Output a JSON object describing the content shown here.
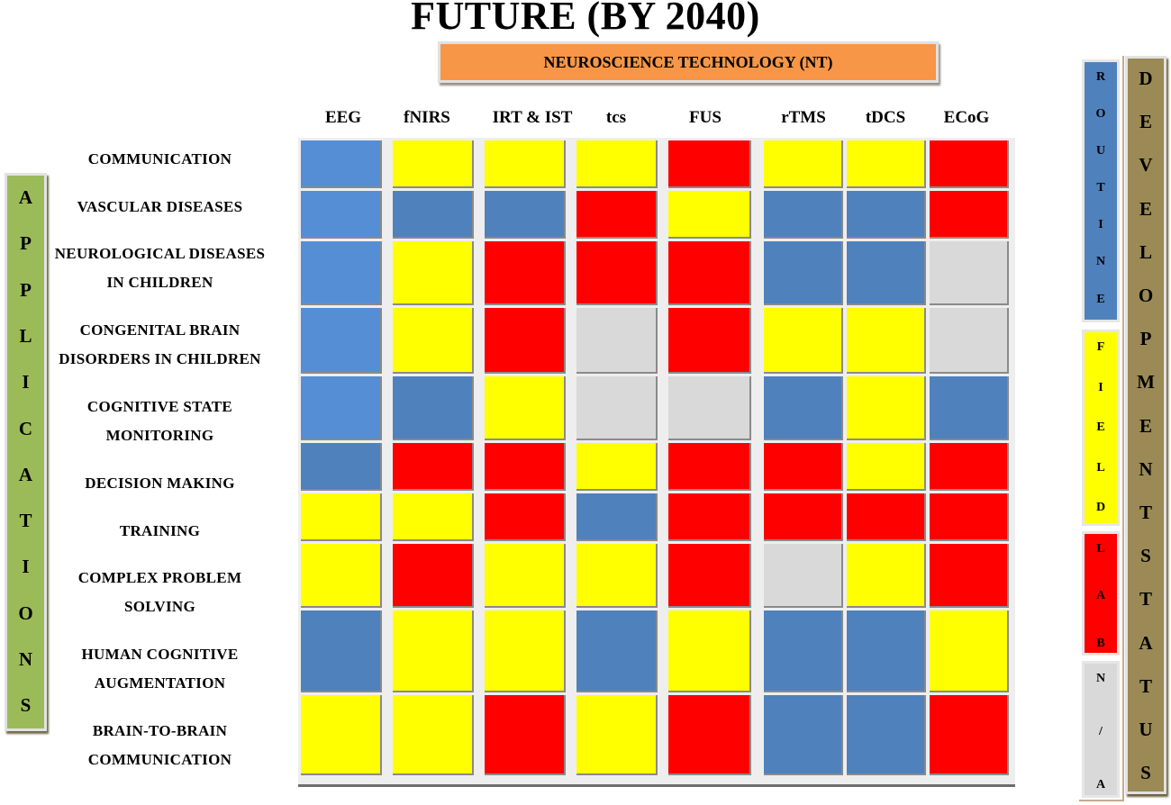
{
  "title": "FUTURE (BY 2040)",
  "banner": "NEUROSCIENCE TECHNOLOGY (NT)",
  "side_label": "APPLICATIONS",
  "status_label": "DEVELOPMENT STATUS",
  "colors": {
    "routine": "#4f81bd",
    "field": "#ffff00",
    "lab": "#ff0000",
    "na": "#d9d9d9"
  },
  "legend": [
    {
      "key": "routine",
      "label": "ROUTINE"
    },
    {
      "key": "field",
      "label": "FIELD"
    },
    {
      "key": "lab",
      "label": "LAB"
    },
    {
      "key": "na",
      "label": "N/A"
    }
  ],
  "chart_data": {
    "type": "heatmap",
    "columns": [
      "EEG",
      "fNIRS",
      "IRT & IST",
      "tcs",
      "FUS",
      "rTMS",
      "tDCS",
      "ECoG"
    ],
    "rows": [
      {
        "label": [
          "COMMUNICATION"
        ],
        "values": [
          "routine",
          "field",
          "field",
          "field",
          "lab",
          "field",
          "field",
          "lab"
        ]
      },
      {
        "label": [
          "VASCULAR DISEASES"
        ],
        "values": [
          "routine",
          "routine",
          "routine",
          "lab",
          "field",
          "routine",
          "routine",
          "lab"
        ]
      },
      {
        "label": [
          "NEUROLOGICAL DISEASES",
          "IN CHILDREN"
        ],
        "values": [
          "routine",
          "field",
          "lab",
          "lab",
          "lab",
          "routine",
          "routine",
          "na"
        ]
      },
      {
        "label": [
          "CONGENITAL BRAIN",
          "DISORDERS IN CHILDREN"
        ],
        "values": [
          "routine",
          "field",
          "lab",
          "na",
          "lab",
          "field",
          "field",
          "na"
        ]
      },
      {
        "label": [
          "COGNITIVE STATE",
          "MONITORING"
        ],
        "values": [
          "routine",
          "routine",
          "field",
          "na",
          "na",
          "routine",
          "field",
          "routine"
        ]
      },
      {
        "label": [
          "DECISION MAKING"
        ],
        "values": [
          "routine",
          "lab",
          "lab",
          "field",
          "lab",
          "lab",
          "field",
          "lab"
        ]
      },
      {
        "label": [
          "TRAINING"
        ],
        "values": [
          "field",
          "field",
          "lab",
          "routine",
          "lab",
          "lab",
          "lab",
          "lab"
        ]
      },
      {
        "label": [
          "COMPLEX PROBLEM",
          "SOLVING"
        ],
        "values": [
          "field",
          "lab",
          "field",
          "field",
          "lab",
          "na",
          "field",
          "lab"
        ]
      },
      {
        "label": [
          "HUMAN COGNITIVE",
          "AUGMENTATION"
        ],
        "values": [
          "routine",
          "field",
          "field",
          "routine",
          "field",
          "routine",
          "routine",
          "field"
        ]
      },
      {
        "label": [
          "BRAIN-TO-BRAIN",
          "COMMUNICATION"
        ],
        "values": [
          "field",
          "field",
          "lab",
          "field",
          "lab",
          "routine",
          "routine",
          "lab"
        ]
      }
    ]
  }
}
